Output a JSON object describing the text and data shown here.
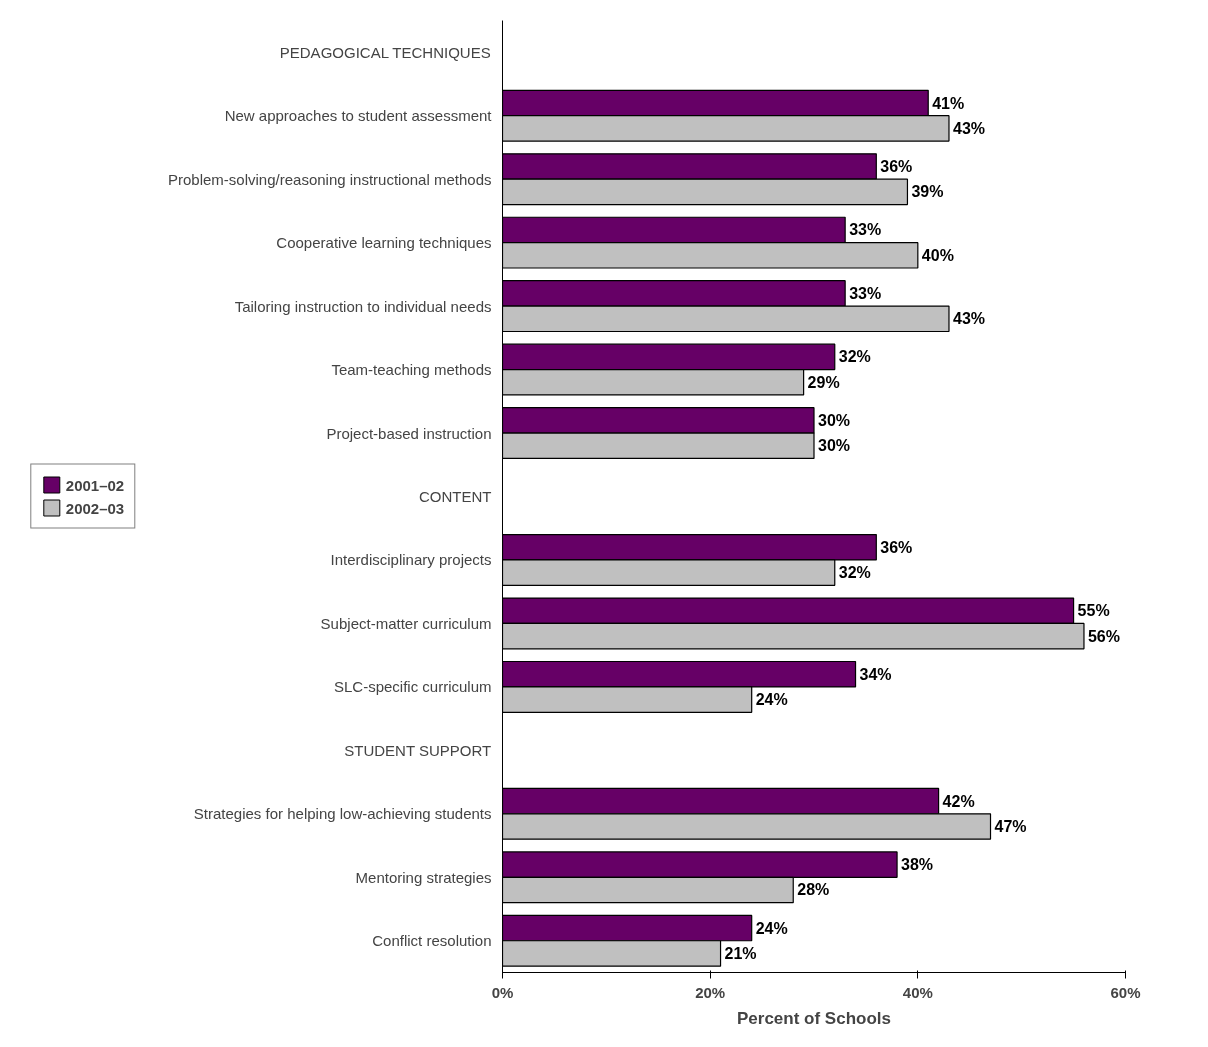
{
  "chart_data": {
    "type": "bar",
    "orientation": "horizontal",
    "xlabel": "Percent of Schools",
    "categories": [
      "PEDAGOGICAL TECHNIQUES",
      "New approaches to student assessment",
      "Problem-solving/reasoning instructional methods",
      "Cooperative learning techniques",
      "Tailoring instruction to individual needs",
      "Team-teaching methods",
      "Project-based instruction",
      "CONTENT",
      "Interdisciplinary projects",
      "Subject-matter curriculum",
      "SLC-specific curriculum",
      "STUDENT SUPPORT",
      "Strategies for helping low-achieving students",
      "Mentoring strategies",
      "Conflict resolution"
    ],
    "series": [
      {
        "name": "2001–02",
        "color": "#660066",
        "values": [
          null,
          41,
          36,
          33,
          33,
          32,
          30,
          null,
          36,
          55,
          34,
          null,
          42,
          38,
          24
        ],
        "value_labels": [
          null,
          "41%",
          "36%",
          "33%",
          "33%",
          "32%",
          "30%",
          null,
          "36%",
          "55%",
          "34%",
          null,
          "42%",
          "38%",
          "24%"
        ]
      },
      {
        "name": "2002–03",
        "color": "#c0c0c0",
        "values": [
          null,
          43,
          39,
          40,
          43,
          29,
          30,
          null,
          32,
          56,
          24,
          null,
          47,
          28,
          21
        ],
        "value_labels": [
          null,
          "43%",
          "39%",
          "40%",
          "43%",
          "29%",
          "30%",
          null,
          "32%",
          "56%",
          "24%",
          null,
          "47%",
          "28%",
          "21%"
        ]
      }
    ],
    "xlim": [
      0,
      60
    ],
    "xticks": [
      {
        "value": 0,
        "label": "0%"
      },
      {
        "value": 20,
        "label": "20%"
      },
      {
        "value": 40,
        "label": "40%"
      },
      {
        "value": 60,
        "label": "60%"
      }
    ],
    "grid": false,
    "legend": "left"
  }
}
